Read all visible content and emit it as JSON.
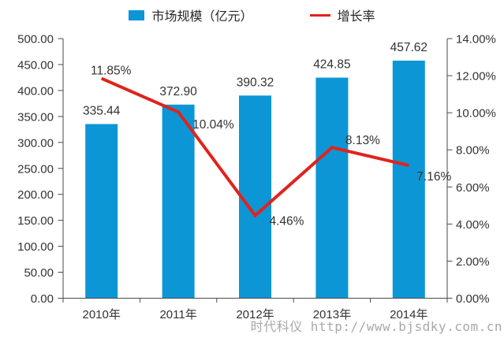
{
  "legend": {
    "bar_label": "市场规模（亿元）",
    "line_label": "增长率"
  },
  "watermark": "时代科仪 http://www.bjsdky.com.cn",
  "colors": {
    "bar": "#0d96d6",
    "line": "#e0231c",
    "axis": "#4a4a4a",
    "text": "#333333",
    "watermark": "#a9a9a9"
  },
  "chart_data": {
    "type": "bar",
    "subtype": "bar+line combo, dual axis",
    "title": "",
    "categories": [
      "2010年",
      "2011年",
      "2012年",
      "2013年",
      "2014年"
    ],
    "series": [
      {
        "name": "市场规模（亿元）",
        "type": "bar",
        "axis": "left",
        "values": [
          335.44,
          372.9,
          390.32,
          424.85,
          457.62
        ],
        "labels": [
          "335.44",
          "372.90",
          "390.32",
          "424.85",
          "457.62"
        ]
      },
      {
        "name": "增长率",
        "type": "line",
        "axis": "right",
        "values": [
          11.85,
          10.04,
          4.46,
          8.13,
          7.16
        ],
        "labels": [
          "11.85%",
          "10.04%",
          "4.46%",
          "8.13%",
          "7.16%"
        ]
      }
    ],
    "left_axis": {
      "min": 0,
      "max": 500,
      "step": 50,
      "ticks": [
        "0.00",
        "50.00",
        "100.00",
        "150.00",
        "200.00",
        "250.00",
        "300.00",
        "350.00",
        "400.00",
        "450.00",
        "500.00"
      ]
    },
    "right_axis": {
      "min": 0,
      "max": 14,
      "step": 2,
      "ticks": [
        "0.00%",
        "2.00%",
        "4.00%",
        "6.00%",
        "8.00%",
        "10.00%",
        "12.00%",
        "14.00%"
      ]
    },
    "grid": false,
    "legend_position": "top"
  }
}
